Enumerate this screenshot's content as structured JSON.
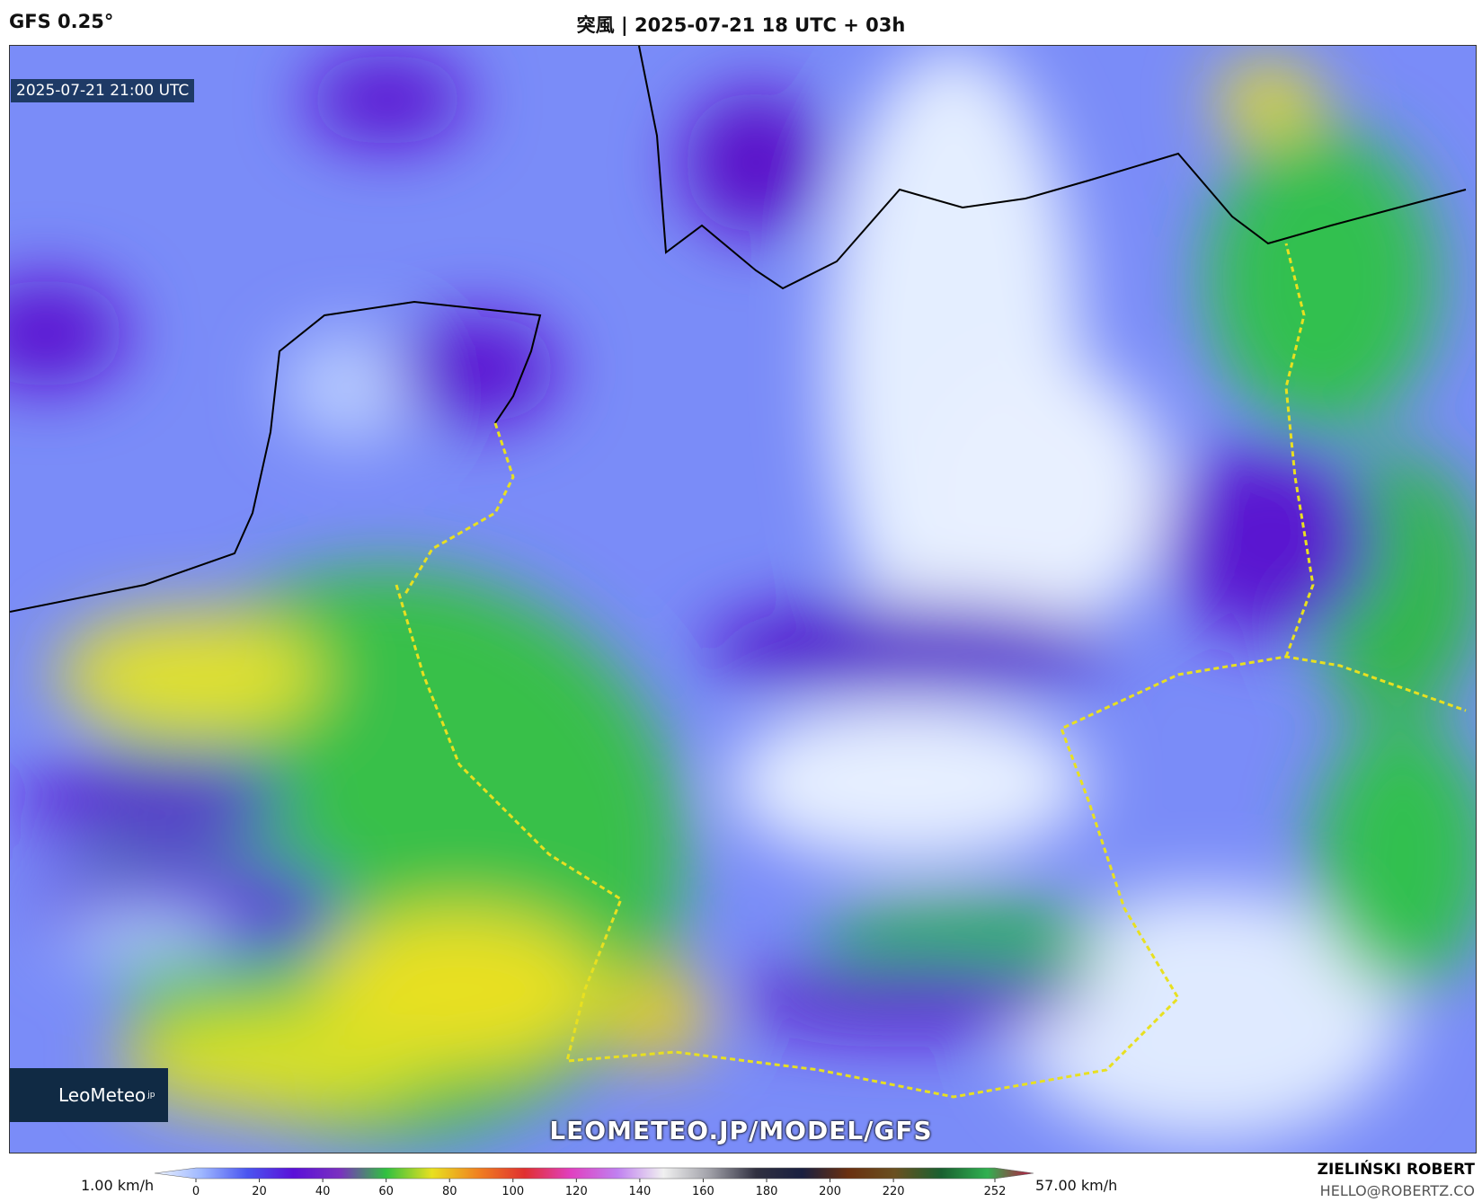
{
  "header": {
    "model": "GFS 0.25°",
    "title": "突風 | 2025-07-21 18 UTC + 03h"
  },
  "map": {
    "timestamp": "2025-07-21 21:00 UTC",
    "logo": "LeoMeteo",
    "logo_suffix": "jp",
    "watermark": "LEOMETEO.JP/MODEL/GFS"
  },
  "colorbar": {
    "min_label": "1.00 km/h",
    "max_label": "57.00 km/h",
    "ticks": [
      0,
      20,
      40,
      60,
      80,
      100,
      120,
      140,
      160,
      180,
      200,
      220,
      252
    ],
    "colors": [
      "#eef4ff",
      "#9fb8ff",
      "#4a55f0",
      "#5a10d8",
      "#7a30c0",
      "#30c040",
      "#e8e020",
      "#f08020",
      "#e03030",
      "#e040c0",
      "#c080f0",
      "#f0f0f0",
      "#a0a0a8",
      "#303040",
      "#1a2040",
      "#6a3010",
      "#6a5020",
      "#1a6030",
      "#30b050",
      "#c01040"
    ]
  },
  "author": {
    "name": "ZIELIŃSKI ROBERT",
    "email": "HELLO@ROBERTZ.CO"
  }
}
